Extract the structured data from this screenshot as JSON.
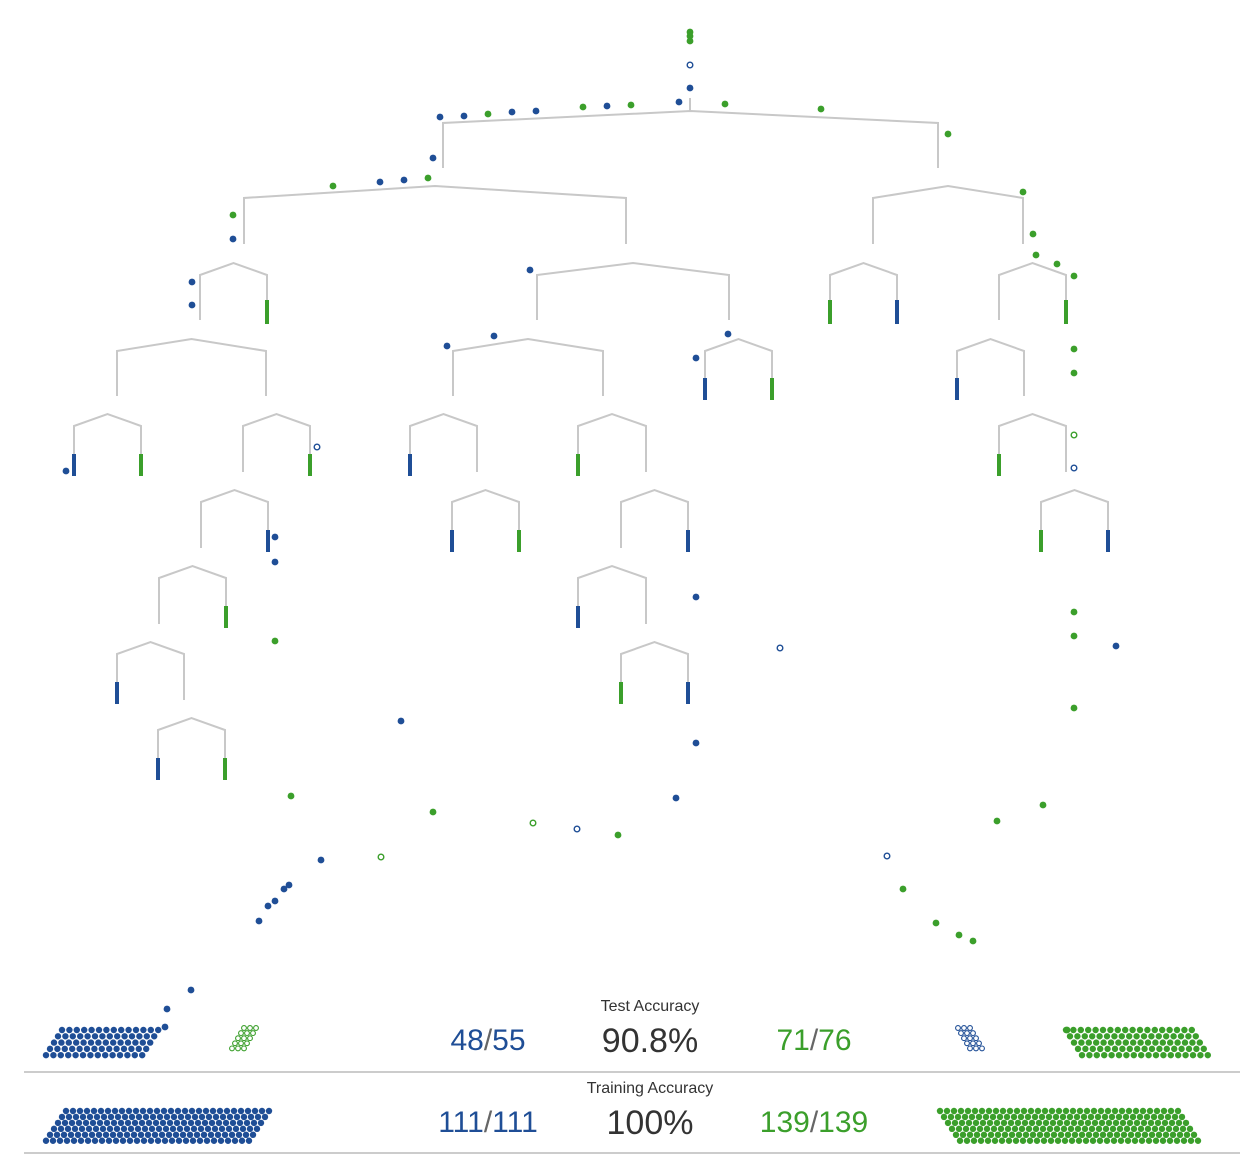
{
  "colors": {
    "class_a": "#1f4e96",
    "class_b": "#3b9f2b",
    "branch": "#c8c8c8",
    "text": "#333333"
  },
  "test": {
    "label": "Test Accuracy",
    "accuracy": "90.8%",
    "class_a_correct": "48",
    "class_a_total": "55",
    "class_b_correct": "71",
    "class_b_total": "76",
    "slash": "/"
  },
  "training": {
    "label": "Training Accuracy",
    "accuracy": "100%",
    "class_a_correct": "111",
    "class_a_total": "111",
    "class_b_correct": "139",
    "class_b_total": "139",
    "slash": "/"
  }
}
